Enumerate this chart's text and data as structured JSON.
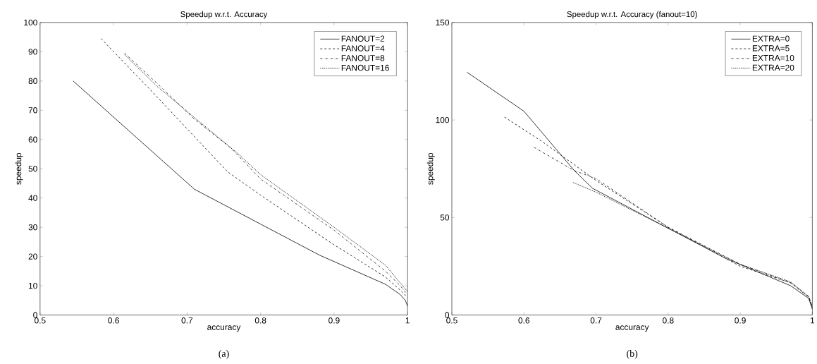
{
  "chart_data": [
    {
      "type": "line",
      "title": "Speedup w.r.t. Accuracy",
      "xlabel": "accuracy",
      "ylabel": "speedup",
      "xlim": [
        0.5,
        1
      ],
      "ylim": [
        0,
        100
      ],
      "xticks": [
        0.5,
        0.6,
        0.7,
        0.8,
        0.9,
        1
      ],
      "yticks": [
        0,
        10,
        20,
        30,
        40,
        50,
        60,
        70,
        80,
        90,
        100
      ],
      "legend": "top right",
      "annotations": [
        "(a)"
      ],
      "series": [
        {
          "name": "FANOUT=2",
          "color": "#000000",
          "line_style": "solid",
          "x": [
            0.545,
            0.71,
            0.88,
            0.97,
            0.99,
            0.997,
            1
          ],
          "values": [
            80,
            43,
            20.5,
            10.5,
            7,
            5,
            3
          ]
        },
        {
          "name": "FANOUT=4",
          "color": "#000000",
          "line_style": "dashed",
          "x": [
            0.583,
            0.65,
            0.71,
            0.755,
            0.8,
            0.9,
            0.97,
            0.99,
            1
          ],
          "values": [
            94.5,
            77,
            61,
            49,
            41,
            24,
            13,
            8.5,
            6
          ]
        },
        {
          "name": "FANOUT=8",
          "color": "#000000",
          "line_style": "dashdot",
          "x": [
            0.615,
            0.66,
            0.71,
            0.76,
            0.8,
            0.9,
            0.97,
            0.99,
            1
          ],
          "values": [
            89.5,
            79,
            67,
            57,
            46.5,
            29,
            15,
            10,
            7
          ]
        },
        {
          "name": "FANOUT=16",
          "color": "#000000",
          "line_style": "dotted",
          "x": [
            0.615,
            0.66,
            0.71,
            0.77,
            0.8,
            0.9,
            0.97,
            0.99,
            1
          ],
          "values": [
            89,
            78,
            67.5,
            55,
            48,
            30,
            17,
            11,
            8
          ]
        }
      ]
    },
    {
      "type": "line",
      "title": "Speedup w.r.t. Accuracy (fanout=10)",
      "xlabel": "accuracy",
      "ylabel": "speedup",
      "xlim": [
        0.5,
        1
      ],
      "ylim": [
        0,
        150
      ],
      "xticks": [
        0.5,
        0.6,
        0.7,
        0.8,
        0.9,
        1
      ],
      "yticks": [
        0,
        50,
        100,
        150
      ],
      "legend": "top right",
      "annotations": [
        "(b)"
      ],
      "series": [
        {
          "name": "EXTRA=0",
          "color": "#000000",
          "line_style": "solid",
          "x": [
            0.521,
            0.6,
            0.67,
            0.695,
            0.8,
            0.88,
            0.97,
            0.995,
            1
          ],
          "values": [
            124.5,
            104.5,
            74,
            65,
            44.5,
            29,
            15,
            8.5,
            3
          ]
        },
        {
          "name": "EXTRA=5",
          "color": "#000000",
          "line_style": "dashed",
          "x": [
            0.573,
            0.625,
            0.7,
            0.8,
            0.9,
            0.97,
            0.995,
            1
          ],
          "values": [
            101.5,
            89,
            69,
            45,
            25,
            16.5,
            9.5,
            4
          ]
        },
        {
          "name": "EXTRA=10",
          "color": "#000000",
          "line_style": "dashdot",
          "x": [
            0.614,
            0.67,
            0.7,
            0.8,
            0.9,
            0.97,
            0.995,
            1
          ],
          "values": [
            86,
            74,
            70,
            45,
            26,
            16.5,
            9,
            4
          ]
        },
        {
          "name": "EXTRA=20",
          "color": "#000000",
          "line_style": "dotted",
          "x": [
            0.668,
            0.7,
            0.8,
            0.9,
            0.97,
            0.995,
            1
          ],
          "values": [
            68,
            63,
            44.5,
            26,
            17,
            9.5,
            4
          ]
        }
      ]
    }
  ]
}
